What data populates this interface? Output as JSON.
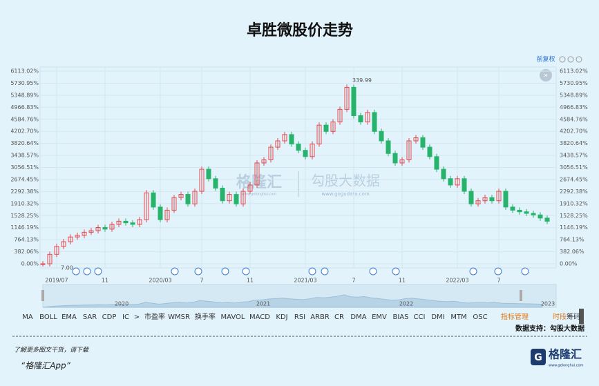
{
  "header": {
    "title": "卓胜微股价走势",
    "adjust": "前复权"
  },
  "chart_data": {
    "type": "candlestick",
    "close": [
      0,
      300,
      550,
      700,
      850,
      900,
      1000,
      1050,
      1150,
      1100,
      1250,
      1350,
      1300,
      1250,
      1400,
      2250,
      1800,
      1400,
      1700,
      2100,
      2200,
      1900,
      2300,
      3000,
      2700,
      2400,
      2000,
      2200,
      1900,
      2300,
      2500,
      3200,
      3300,
      3700,
      3900,
      4100,
      3800,
      3600,
      3400,
      3800,
      4400,
      4200,
      4500,
      4900,
      5600,
      4700,
      4500,
      4800,
      4200,
      3900,
      3500,
      3200,
      3300,
      3900,
      4000,
      3700,
      3400,
      3000,
      2700,
      2500,
      2700,
      2300,
      1900,
      2000,
      2100,
      2000,
      2300,
      1800,
      1700,
      1650,
      1600,
      1550,
      1450,
      1350
    ],
    "up_color": "#e5484d",
    "down_color": "#27b36b",
    "ylim": [
      0,
      6113.02
    ],
    "yticks": [
      {
        "value": 0,
        "label": "0.00%"
      },
      {
        "value": 382.06,
        "label": "382.06%"
      },
      {
        "value": 764.13,
        "label": "764.13%"
      },
      {
        "value": 1146.19,
        "label": "1146.19%"
      },
      {
        "value": 1528.25,
        "label": "1528.25%"
      },
      {
        "value": 1910.32,
        "label": "1910.32%"
      },
      {
        "value": 2292.38,
        "label": "2292.38%"
      },
      {
        "value": 2674.45,
        "label": "2674.45%"
      },
      {
        "value": 3056.51,
        "label": "3056.51%"
      },
      {
        "value": 3438.57,
        "label": "3438.57%"
      },
      {
        "value": 3820.64,
        "label": "3820.64%"
      },
      {
        "value": 4202.7,
        "label": "4202.70%"
      },
      {
        "value": 4584.76,
        "label": "4584.76%"
      },
      {
        "value": 4966.83,
        "label": "4966.83%"
      },
      {
        "value": 5348.89,
        "label": "5348.89%"
      },
      {
        "value": 5730.95,
        "label": "5730.95%"
      },
      {
        "value": 6113.02,
        "label": "6113.02%"
      }
    ],
    "xticks": [
      {
        "value": 2,
        "label": "2019/07"
      },
      {
        "value": 9,
        "label": "11"
      },
      {
        "value": 17,
        "label": "2020/03"
      },
      {
        "value": 23,
        "label": "7"
      },
      {
        "value": 30,
        "label": "11"
      },
      {
        "value": 38,
        "label": "2021/03"
      },
      {
        "value": 45,
        "label": "7"
      },
      {
        "value": 52,
        "label": "11"
      },
      {
        "value": 60,
        "label": "2022/03"
      },
      {
        "value": 66,
        "label": "7"
      }
    ],
    "annotations": {
      "high": "339.99",
      "low": "7.00"
    },
    "navigator_labels": [
      "2020",
      "2021",
      "2022",
      "2023"
    ],
    "grid": true
  },
  "watermark": {
    "brand": "格隆汇",
    "brand_url": "www.gelonghui.com",
    "source": "勾股大数据",
    "source_url": "www.gogudata.com"
  },
  "indicators": [
    "MA",
    "BOLL",
    "EMA",
    "SAR",
    "CDP",
    "IC",
    ">",
    "市盈率",
    "WMSR",
    "换手率",
    "MAVOL",
    "MACD",
    "KDJ",
    "RSI",
    "ARBR",
    "CR",
    "DMA",
    "EMV",
    "BIAS",
    "CCI",
    "DMI",
    "MTM",
    "OSC"
  ],
  "tools": [
    "指标管理",
    "时段",
    "筹码"
  ],
  "data_source": "数据支持：勾股大数据",
  "footer": {
    "line1": "了解更多图文干货，请下载",
    "line2": "“格隆汇App”",
    "logo": "格隆汇",
    "logo_url": "www.gelonghui.com"
  }
}
